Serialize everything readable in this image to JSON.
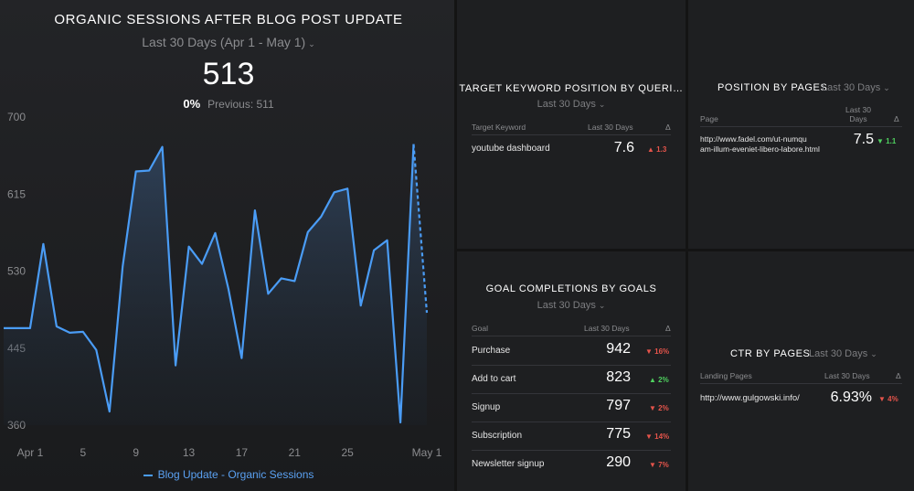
{
  "main": {
    "title": "ORGANIC SESSIONS AFTER BLOG POST UPDATE",
    "range": "Last 30 Days (Apr 1 - May 1)",
    "value": "513",
    "change_pct": "0%",
    "previous": "Previous: 511",
    "legend": "Blog Update - Organic Sessions"
  },
  "chart_data": {
    "type": "line",
    "title": "ORGANIC SESSIONS AFTER BLOG POST UPDATE",
    "x_tick_labels": [
      "Apr 1",
      "5",
      "9",
      "13",
      "17",
      "21",
      "25",
      "May 1"
    ],
    "y_tick_labels": [
      "700",
      "615",
      "530",
      "445",
      "360"
    ],
    "ylim": [
      360,
      700
    ],
    "grid": false,
    "legend_position": "bottom",
    "series": [
      {
        "name": "Blog Update - Organic Sessions",
        "color": "#4a9cf5",
        "x": [
          "Mar 30",
          "Mar 31",
          "Apr 1",
          "Apr 2",
          "Apr 3",
          "Apr 4",
          "Apr 5",
          "Apr 6",
          "Apr 7",
          "Apr 8",
          "Apr 9",
          "Apr 10",
          "Apr 11",
          "Apr 12",
          "Apr 13",
          "Apr 14",
          "Apr 15",
          "Apr 16",
          "Apr 17",
          "Apr 18",
          "Apr 19",
          "Apr 20",
          "Apr 21",
          "Apr 22",
          "Apr 23",
          "Apr 24",
          "Apr 25",
          "Apr 26",
          "Apr 27",
          "Apr 28",
          "Apr 29",
          "Apr 30",
          "May 1"
        ],
        "values": [
          467,
          467,
          467,
          560,
          469,
          462,
          463,
          443,
          375,
          535,
          640,
          641,
          667,
          426,
          557,
          538,
          572,
          510,
          434,
          597,
          505,
          522,
          519,
          573,
          590,
          617,
          621,
          492,
          553,
          564,
          363,
          670,
          484
        ],
        "dashed_last_segment": true
      }
    ]
  },
  "keyword": {
    "title": "TARGET KEYWORD POSITION BY QUERI…",
    "range": "Last 30 Days",
    "headers": [
      "Target Keyword",
      "Last 30 Days",
      "Δ"
    ],
    "rows": [
      {
        "label": "youtube dashboard",
        "value": "7.6",
        "delta": "1.3",
        "dir": "up",
        "color": "down"
      }
    ]
  },
  "position": {
    "title": "POSITION BY PAGES",
    "range": "Last 30 Days",
    "headers": [
      "Page",
      "Last 30\nDays",
      "Δ"
    ],
    "rows": [
      {
        "label_line1": "http://www.fadel.com/ut-numqu",
        "label_line2": "am-illum-eveniet-libero-labore.html",
        "value": "7.5",
        "delta": "1.1",
        "dir": "down",
        "color": "up"
      }
    ]
  },
  "goals": {
    "title": "GOAL COMPLETIONS BY GOALS",
    "range": "Last 30 Days",
    "headers": [
      "Goal",
      "Last 30 Days",
      "Δ"
    ],
    "rows": [
      {
        "label": "Purchase",
        "value": "942",
        "delta": "16%",
        "dir": "down",
        "color": "down"
      },
      {
        "label": "Add to cart",
        "value": "823",
        "delta": "2%",
        "dir": "up",
        "color": "up"
      },
      {
        "label": "Signup",
        "value": "797",
        "delta": "2%",
        "dir": "down",
        "color": "down"
      },
      {
        "label": "Subscription",
        "value": "775",
        "delta": "14%",
        "dir": "down",
        "color": "down"
      },
      {
        "label": "Newsletter signup",
        "value": "290",
        "delta": "7%",
        "dir": "down",
        "color": "down"
      }
    ]
  },
  "ctr": {
    "title": "CTR BY PAGES",
    "range": "Last 30 Days",
    "headers": [
      "Landing Pages",
      "Last 30 Days",
      "Δ"
    ],
    "rows": [
      {
        "label": "http://www.gulgowski.info/",
        "value": "6.93%",
        "delta": "4%",
        "dir": "down",
        "color": "down"
      }
    ]
  },
  "colors": {
    "line": "#4a9cf5",
    "negative": "#e5544b",
    "positive": "#4fd15f"
  }
}
